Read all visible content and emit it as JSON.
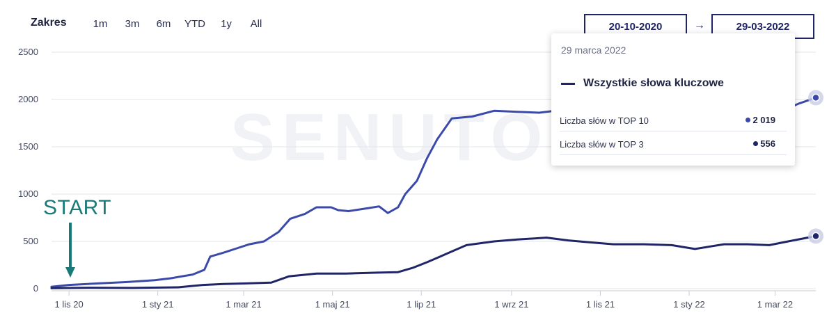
{
  "range": {
    "title": "Zakres",
    "buttons": [
      "1m",
      "3m",
      "6m",
      "YTD",
      "1y",
      "All"
    ],
    "date_from": "20-10-2020",
    "date_arrow": "→",
    "date_to": "29-03-2022"
  },
  "tooltip": {
    "date": "29 marca 2022",
    "series_name": "Wszystkie słowa kluczowe",
    "rows": [
      {
        "label": "Liczba słów w TOP 10",
        "value": "2 019",
        "dot_color": "#3b4aa8"
      },
      {
        "label": "Liczba słów w TOP 3",
        "value": "556",
        "dot_color": "#1f2566"
      }
    ]
  },
  "annotation": {
    "text": "START",
    "color": "#1a7a78"
  },
  "watermark": "SENUTO",
  "chart_data": {
    "type": "line",
    "title": "",
    "xlabel": "",
    "ylabel": "",
    "x_range": [
      "2020-10-20",
      "2022-03-29"
    ],
    "ylim": [
      0,
      2500
    ],
    "yticks": [
      0,
      500,
      1000,
      1500,
      2000,
      2500
    ],
    "xticks": [
      {
        "date": "2020-11-01",
        "label": "1 lis 20"
      },
      {
        "date": "2021-01-01",
        "label": "1 sty 21"
      },
      {
        "date": "2021-03-01",
        "label": "1 mar 21"
      },
      {
        "date": "2021-05-01",
        "label": "1 maj 21"
      },
      {
        "date": "2021-07-01",
        "label": "1 lip 21"
      },
      {
        "date": "2021-09-01",
        "label": "1 wrz 21"
      },
      {
        "date": "2021-11-01",
        "label": "1 lis 21"
      },
      {
        "date": "2022-01-01",
        "label": "1 sty 22"
      },
      {
        "date": "2022-03-01",
        "label": "1 mar 22"
      }
    ],
    "grid": "horizontal",
    "series": [
      {
        "name": "Liczba słów w TOP 10",
        "color": "#3b4aa8",
        "points": [
          [
            "2020-10-20",
            20
          ],
          [
            "2020-11-01",
            40
          ],
          [
            "2020-11-20",
            55
          ],
          [
            "2020-12-10",
            70
          ],
          [
            "2020-12-30",
            90
          ],
          [
            "2021-01-10",
            110
          ],
          [
            "2021-01-25",
            150
          ],
          [
            "2021-02-02",
            200
          ],
          [
            "2021-02-06",
            340
          ],
          [
            "2021-02-15",
            380
          ],
          [
            "2021-02-25",
            430
          ],
          [
            "2021-03-05",
            470
          ],
          [
            "2021-03-15",
            500
          ],
          [
            "2021-03-25",
            600
          ],
          [
            "2021-04-02",
            740
          ],
          [
            "2021-04-12",
            790
          ],
          [
            "2021-04-20",
            860
          ],
          [
            "2021-04-30",
            860
          ],
          [
            "2021-05-05",
            830
          ],
          [
            "2021-05-12",
            820
          ],
          [
            "2021-05-25",
            850
          ],
          [
            "2021-06-02",
            870
          ],
          [
            "2021-06-08",
            800
          ],
          [
            "2021-06-15",
            860
          ],
          [
            "2021-06-20",
            1000
          ],
          [
            "2021-06-28",
            1140
          ],
          [
            "2021-07-05",
            1380
          ],
          [
            "2021-07-12",
            1580
          ],
          [
            "2021-07-22",
            1800
          ],
          [
            "2021-08-05",
            1820
          ],
          [
            "2021-08-20",
            1880
          ],
          [
            "2021-09-05",
            1870
          ],
          [
            "2021-09-20",
            1860
          ],
          [
            "2021-10-01",
            1880
          ],
          [
            "2021-10-10",
            1840
          ],
          [
            "2021-10-20",
            1800
          ],
          [
            "2021-11-01",
            1750
          ],
          [
            "2021-11-20",
            1760
          ],
          [
            "2021-12-05",
            1790
          ],
          [
            "2021-12-20",
            1720
          ],
          [
            "2022-01-05",
            1750
          ],
          [
            "2022-01-20",
            1860
          ],
          [
            "2022-02-05",
            1800
          ],
          [
            "2022-02-20",
            1760
          ],
          [
            "2022-03-05",
            1880
          ],
          [
            "2022-03-18",
            1960
          ],
          [
            "2022-03-29",
            2019
          ]
        ]
      },
      {
        "name": "Liczba słów w TOP 3",
        "color": "#1f2566",
        "points": [
          [
            "2020-10-20",
            5
          ],
          [
            "2020-11-15",
            10
          ],
          [
            "2020-12-15",
            8
          ],
          [
            "2021-01-15",
            15
          ],
          [
            "2021-02-01",
            40
          ],
          [
            "2021-02-15",
            50
          ],
          [
            "2021-03-01",
            55
          ],
          [
            "2021-03-20",
            65
          ],
          [
            "2021-04-01",
            130
          ],
          [
            "2021-04-20",
            160
          ],
          [
            "2021-05-10",
            160
          ],
          [
            "2021-06-01",
            170
          ],
          [
            "2021-06-15",
            175
          ],
          [
            "2021-06-25",
            220
          ],
          [
            "2021-07-05",
            280
          ],
          [
            "2021-07-20",
            380
          ],
          [
            "2021-08-01",
            460
          ],
          [
            "2021-08-20",
            500
          ],
          [
            "2021-09-05",
            520
          ],
          [
            "2021-09-25",
            540
          ],
          [
            "2021-10-10",
            510
          ],
          [
            "2021-10-25",
            490
          ],
          [
            "2021-11-10",
            470
          ],
          [
            "2021-12-01",
            470
          ],
          [
            "2021-12-20",
            460
          ],
          [
            "2022-01-05",
            420
          ],
          [
            "2022-01-25",
            470
          ],
          [
            "2022-02-10",
            470
          ],
          [
            "2022-02-25",
            460
          ],
          [
            "2022-03-10",
            500
          ],
          [
            "2022-03-29",
            556
          ]
        ]
      }
    ]
  }
}
